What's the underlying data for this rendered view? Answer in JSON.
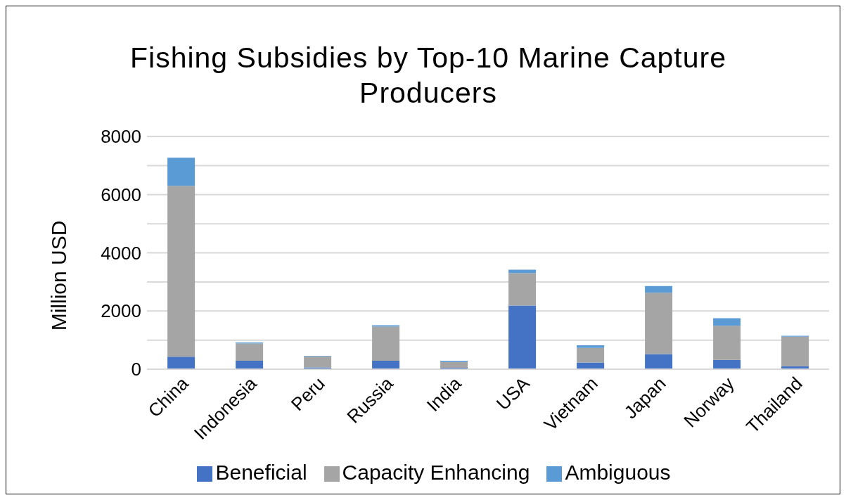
{
  "chart_data": {
    "type": "bar",
    "title": "Fishing Subsidies by Top-10 Marine Capture Producers",
    "ylabel": "Million USD",
    "categories": [
      "China",
      "Indonesia",
      "Peru",
      "Russia",
      "India",
      "USA",
      "Vietnam",
      "Japan",
      "Norway",
      "Thailand"
    ],
    "stacked": true,
    "series": [
      {
        "name": "Beneficial",
        "color": "#4472c4",
        "values": [
          430,
          290,
          60,
          290,
          50,
          2190,
          230,
          520,
          320,
          100
        ]
      },
      {
        "name": "Capacity Enhancing",
        "color": "#a5a5a5",
        "values": [
          5870,
          590,
          380,
          1170,
          200,
          1110,
          500,
          2110,
          1170,
          1020
        ]
      },
      {
        "name": "Ambiguous",
        "color": "#5b9bd5",
        "values": [
          970,
          40,
          20,
          50,
          40,
          120,
          90,
          230,
          260,
          30
        ]
      }
    ],
    "ylim": [
      0,
      8000
    ],
    "yticks": [
      0,
      {
        "value": 1000,
        "label": null
      },
      2000,
      {
        "value": 3000,
        "label": null
      },
      4000,
      {
        "value": 5000,
        "label": null
      },
      6000,
      {
        "value": 7000,
        "label": null
      },
      8000
    ],
    "grid": "y",
    "legend": "bottom"
  }
}
